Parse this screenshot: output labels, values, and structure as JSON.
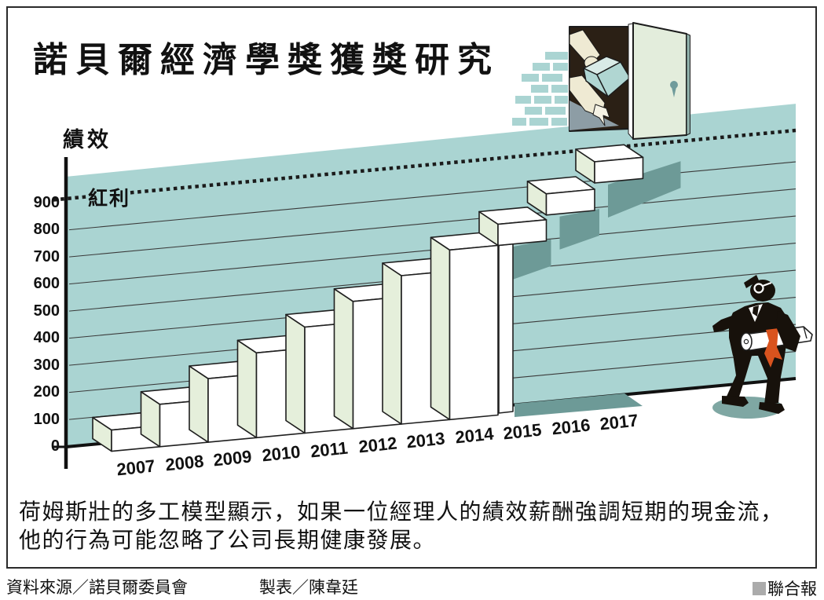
{
  "header": {
    "title": "諾貝爾經濟學獎獲獎研究"
  },
  "chart_data": {
    "type": "bar",
    "title": "諾貝爾經濟學獎獲獎研究",
    "ylabel": "績效",
    "bonus_line": {
      "label": "紅利",
      "value": 900
    },
    "y_ticks": [
      0,
      100,
      200,
      300,
      400,
      500,
      600,
      700,
      800,
      900
    ],
    "categories": [
      "2007",
      "2008",
      "2009",
      "2010",
      "2011",
      "2012",
      "2013",
      "2014",
      "2015",
      "2016",
      "2017"
    ],
    "values": [
      100,
      200,
      300,
      400,
      500,
      600,
      700,
      800,
      900,
      1000,
      1100
    ],
    "bar_count": 8,
    "ylim": [
      0,
      1150
    ],
    "grid": "on",
    "legend": "none",
    "layout_note": "staircase bars 2007-2014 rise ~100/yr; floating steps 2015-2017 climb past the dotted bonus line toward an open door; businessman with diploma scroll stands at right"
  },
  "caption": {
    "line1": "荷姆斯壯的多工模型顯示，如果一位經理人的績效薪酬強調短期的現金流，",
    "line2": "他的行為可能忽略了公司長期健康發展。"
  },
  "footer": {
    "source": "資料來源／諾貝爾委員會",
    "credit": "製表／陳韋廷",
    "brand": "聯合報"
  },
  "colors": {
    "wall": "#aad4d2",
    "shadow": "#6d9a97",
    "bar_face": "#ffffff",
    "bar_side": "#e5efdb",
    "outline": "#1f1f1f",
    "door_panel": "#e3eddc",
    "door_edge": "#8fb0aa",
    "doorway": "#2b2015",
    "door_floor": "#8d9da5",
    "arm": "#efead3",
    "hand": "#f5f2e4",
    "parcel": "#b0d6d2",
    "parcel_top": "#d9ebe7",
    "ribbon": "#d9531e",
    "figure": "#17110b",
    "ground_shadow": "#7fa7a3",
    "keyhole": "#6f9b9b",
    "brand_square": "#ababab"
  }
}
